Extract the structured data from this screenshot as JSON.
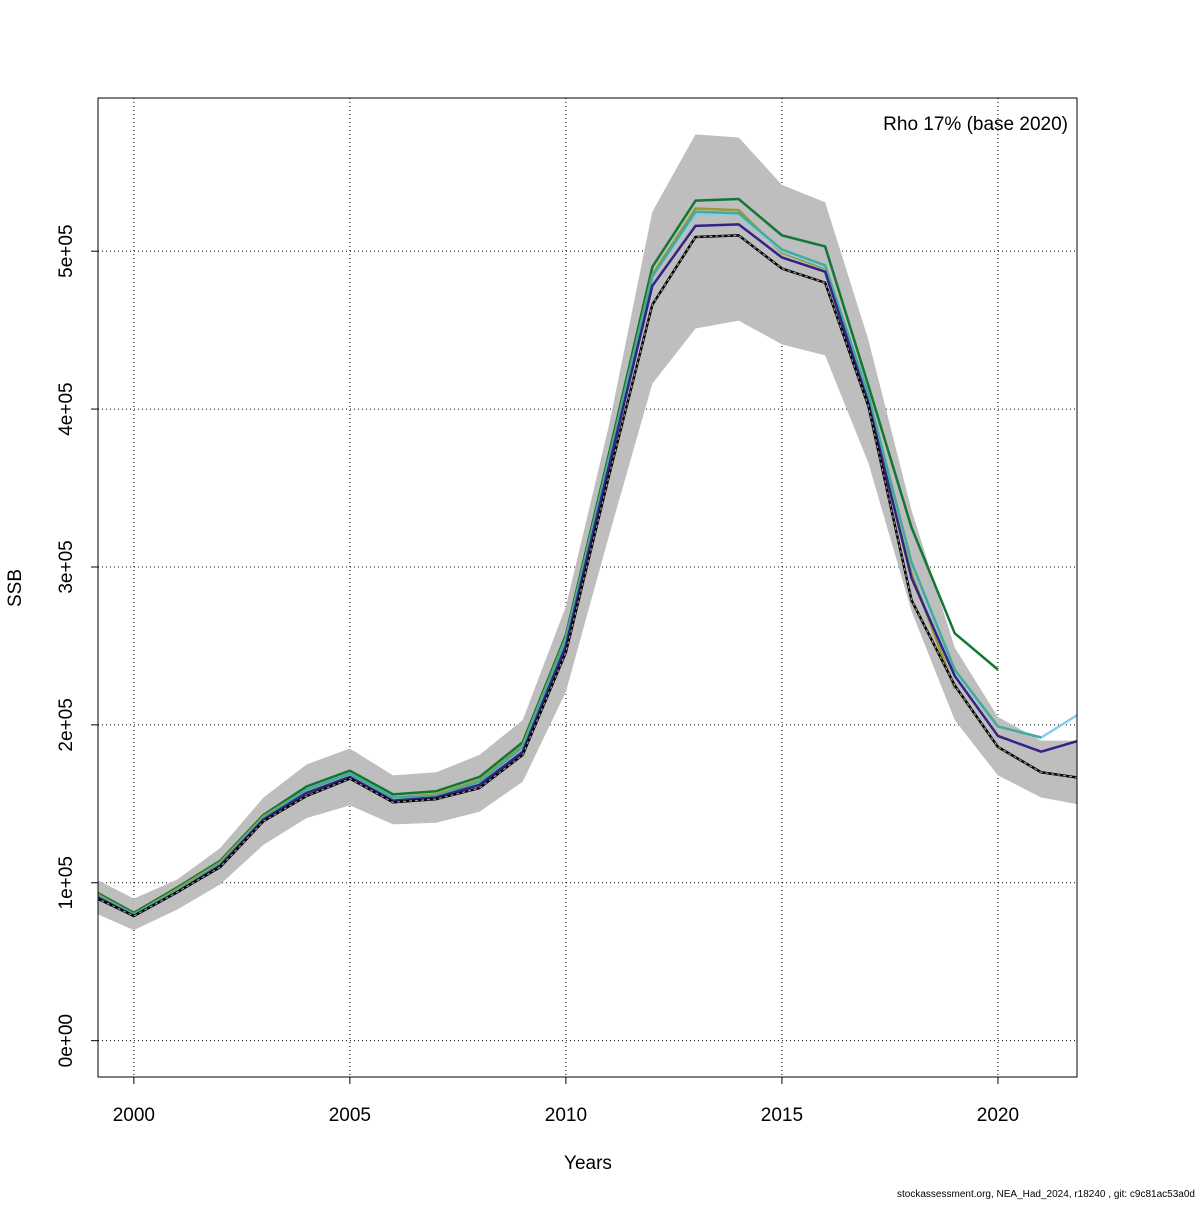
{
  "chart_data": {
    "type": "line",
    "title": "",
    "xlabel": "Years",
    "ylabel": "SSB",
    "annotation": "Rho 17% (base 2020)",
    "footer": "stockassessment.org, NEA_Had_2024, r18240 , git: c9c81ac53a0d",
    "xlim": [
      1999.17,
      2021.83
    ],
    "ylim": [
      -23000,
      597000
    ],
    "xticks": [
      2000,
      2005,
      2010,
      2015,
      2020
    ],
    "xtick_labels": [
      "2000",
      "2005",
      "2010",
      "2015",
      "2020"
    ],
    "yticks": [
      0,
      100000,
      200000,
      300000,
      400000,
      500000
    ],
    "ytick_labels": [
      "0e+00",
      "1e+05",
      "2e+05",
      "3e+05",
      "4e+05",
      "5e+05"
    ],
    "grid": true,
    "band": {
      "color": "#bebebe",
      "x": [
        1999,
        2000,
        2001,
        2002,
        2003,
        2004,
        2005,
        2006,
        2007,
        2008,
        2009,
        2010,
        2011,
        2012,
        2013,
        2014,
        2015,
        2016,
        2017,
        2018,
        2019,
        2020,
        2021,
        2022
      ],
      "upper": [
        104000,
        90000,
        102000,
        122000,
        154000,
        175000,
        185000,
        168000,
        170000,
        181000,
        203000,
        275000,
        390000,
        525000,
        574000,
        572000,
        542000,
        531000,
        444000,
        336000,
        249000,
        205000,
        190000,
        190000
      ],
      "lower": [
        82000,
        70000,
        83000,
        99000,
        124000,
        141000,
        149000,
        137000,
        138000,
        145000,
        164000,
        221000,
        320000,
        416000,
        451000,
        456000,
        441000,
        434000,
        366000,
        272000,
        203000,
        168000,
        154000,
        149000
      ]
    },
    "series": [
      {
        "color": "#117733",
        "dashed": false,
        "x": [
          1999,
          2000,
          2001,
          2002,
          2003,
          2004,
          2005,
          2006,
          2007,
          2008,
          2009,
          2010,
          2011,
          2012,
          2013,
          2014,
          2015,
          2016,
          2017,
          2018,
          2019,
          2020
        ],
        "values": [
          96000,
          81000,
          97000,
          114000,
          143000,
          161000,
          171000,
          156000,
          158000,
          167000,
          189000,
          257000,
          372000,
          490000,
          532000,
          533000,
          510000,
          503000,
          415000,
          325000,
          258000,
          235000
        ]
      },
      {
        "color": "#999933",
        "dashed": false,
        "x": [
          1999,
          2000,
          2001,
          2002,
          2003,
          2004,
          2005,
          2006,
          2007,
          2008,
          2009,
          2010,
          2011,
          2012,
          2013,
          2014,
          2015,
          2016,
          2017,
          2018,
          2019
        ],
        "values": [
          95000,
          80000,
          96000,
          113000,
          142000,
          159000,
          169000,
          154000,
          156000,
          165000,
          187000,
          255000,
          369000,
          485000,
          527000,
          526000,
          499000,
          489000,
          405000,
          296000,
          223000
        ]
      },
      {
        "color": "#88CCEE",
        "dashed": false,
        "x": [
          1999,
          2000,
          2001,
          2002,
          2003,
          2004,
          2005,
          2006,
          2007,
          2008,
          2009,
          2010,
          2011,
          2012,
          2013,
          2014,
          2015,
          2016,
          2017,
          2018,
          2019,
          2020,
          2021,
          2022
        ],
        "values": [
          94000,
          80000,
          95000,
          112000,
          141000,
          159000,
          169000,
          154000,
          155000,
          164000,
          186000,
          254000,
          368000,
          484000,
          523000,
          523000,
          500000,
          490000,
          408000,
          302000,
          234000,
          199000,
          192000,
          209000
        ]
      },
      {
        "color": "#44AA99",
        "dashed": false,
        "x": [
          1999,
          2000,
          2001,
          2002,
          2003,
          2004,
          2005,
          2006,
          2007,
          2008,
          2009,
          2010,
          2011,
          2012,
          2013,
          2014,
          2015,
          2016,
          2017,
          2018,
          2019,
          2020,
          2021
        ],
        "values": [
          94000,
          80000,
          95000,
          112000,
          141000,
          159000,
          169000,
          154000,
          155000,
          164000,
          186000,
          254000,
          368000,
          484000,
          525000,
          524000,
          501000,
          491000,
          409000,
          303000,
          235000,
          199000,
          192000
        ]
      },
      {
        "color": "#332288",
        "dashed": false,
        "x": [
          1999,
          2000,
          2001,
          2002,
          2003,
          2004,
          2005,
          2006,
          2007,
          2008,
          2009,
          2010,
          2011,
          2012,
          2013,
          2014,
          2015,
          2016,
          2017,
          2018,
          2019,
          2020,
          2021,
          2022
        ],
        "values": [
          93000,
          79000,
          94000,
          111000,
          140000,
          157000,
          167000,
          152000,
          154000,
          162000,
          183000,
          250000,
          364000,
          478000,
          516000,
          517000,
          496000,
          487000,
          404000,
          293000,
          231000,
          193000,
          183000,
          191000
        ]
      },
      {
        "color": "#000000",
        "dashed": true,
        "x": [
          1999,
          2000,
          2001,
          2002,
          2003,
          2004,
          2005,
          2006,
          2007,
          2008,
          2009,
          2010,
          2011,
          2012,
          2013,
          2014,
          2015,
          2016,
          2017,
          2018,
          2019,
          2020,
          2021,
          2022
        ],
        "values": [
          92000,
          79000,
          94000,
          110000,
          139000,
          155000,
          166000,
          151000,
          153000,
          160000,
          181000,
          246000,
          358000,
          466000,
          509000,
          510000,
          489000,
          480000,
          402000,
          279000,
          225000,
          186000,
          170000,
          166000
        ]
      }
    ]
  }
}
